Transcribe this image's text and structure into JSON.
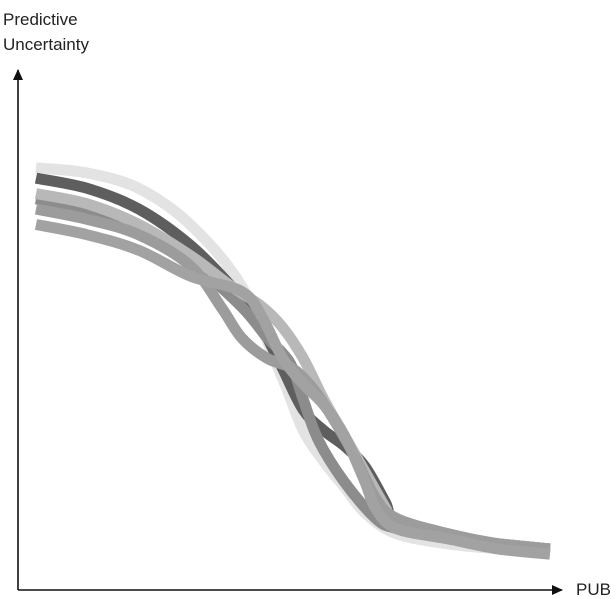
{
  "chart_data": {
    "type": "line",
    "title": "",
    "ylabel_lines": [
      "Predictive",
      "Uncertainty"
    ],
    "xlabel": "PUB",
    "ticks": "none",
    "grid": false,
    "legend": "none",
    "axis_color": "#111111",
    "xlim": [
      0,
      100
    ],
    "ylim": [
      0,
      100
    ],
    "series": [
      {
        "color": "#e3e3e3",
        "x": [
          0,
          10,
          20,
          30,
          40,
          48,
          52,
          56,
          60,
          64,
          70,
          80,
          90,
          100
        ],
        "y": [
          81,
          80,
          77,
          70,
          58,
          40,
          30,
          24,
          19,
          14,
          10,
          8,
          7,
          6
        ]
      },
      {
        "color": "#5e5e5e",
        "x": [
          0,
          10,
          20,
          30,
          38,
          42,
          45,
          48,
          52,
          56,
          60,
          64,
          68,
          70,
          80,
          90,
          100
        ],
        "y": [
          79,
          77,
          73,
          66,
          58,
          53,
          48,
          42,
          34,
          30,
          27,
          23,
          16,
          12,
          9,
          8,
          7
        ]
      },
      {
        "color": "#8c8c8c",
        "x": [
          0,
          10,
          20,
          30,
          40,
          45,
          48,
          50,
          52,
          55,
          60,
          66,
          70,
          80,
          90,
          100
        ],
        "y": [
          75,
          73,
          70,
          63,
          54,
          48,
          45,
          42,
          36,
          28,
          20,
          13,
          11,
          9,
          8,
          7
        ]
      },
      {
        "color": "#b8b8b8",
        "x": [
          0,
          10,
          20,
          30,
          38,
          44,
          48,
          52,
          56,
          60,
          64,
          68,
          70,
          80,
          90,
          100
        ],
        "y": [
          76,
          74,
          70,
          64,
          58,
          54,
          50,
          44,
          36,
          29,
          22,
          15,
          12,
          9,
          8,
          7
        ]
      },
      {
        "color": "#9c9c9c",
        "x": [
          0,
          10,
          20,
          30,
          36,
          40,
          45,
          50,
          54,
          58,
          62,
          66,
          70,
          80,
          90,
          100
        ],
        "y": [
          73,
          71,
          68,
          62,
          54,
          48,
          44,
          42,
          38,
          32,
          25,
          17,
          13,
          10,
          8,
          7
        ]
      },
      {
        "color": "#a2a2a2",
        "x": [
          0,
          10,
          20,
          30,
          40,
          44,
          48,
          52,
          56,
          60,
          64,
          66,
          70,
          80,
          90,
          100
        ],
        "y": [
          70,
          68,
          65,
          60,
          57,
          52,
          44,
          39,
          35,
          29,
          20,
          15,
          11,
          9,
          7,
          6
        ]
      }
    ]
  }
}
